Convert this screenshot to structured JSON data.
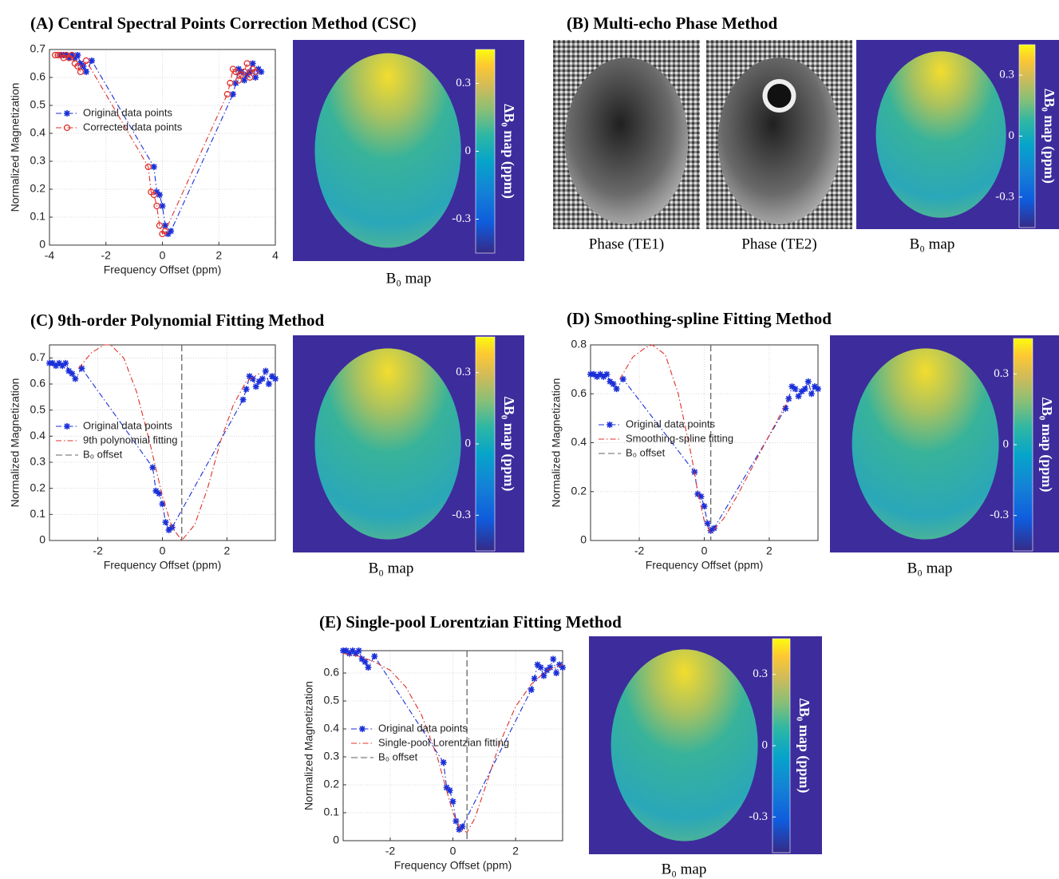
{
  "chart_data": [
    {
      "type": "line",
      "title": "(A) Central Spectral Points Correction Method (CSC)",
      "xlabel": "Frequency Offset (ppm)",
      "ylabel": "Normalized Magnetization",
      "xlim": [
        -4,
        4
      ],
      "xticks": [
        -4,
        -2,
        0,
        2,
        4
      ],
      "ylim": [
        0,
        0.7
      ],
      "yticks": [
        0,
        0.1,
        0.2,
        0.3,
        0.4,
        0.5,
        0.6,
        0.7
      ],
      "grid": true,
      "series": [
        {
          "name": "Original data points",
          "color": "#1a2fd8",
          "marker": "star",
          "x": [
            -3.6,
            -3.5,
            -3.4,
            -3.3,
            -3.2,
            -3.1,
            -3.0,
            -2.9,
            -2.8,
            -2.7,
            -2.5,
            -0.3,
            -0.2,
            -0.1,
            0,
            0.1,
            0.2,
            0.3,
            2.5,
            2.6,
            2.7,
            2.8,
            2.9,
            3.0,
            3.1,
            3.2,
            3.3,
            3.4,
            3.5
          ],
          "values": [
            0.68,
            0.68,
            0.68,
            0.67,
            0.68,
            0.67,
            0.68,
            0.65,
            0.64,
            0.62,
            0.66,
            0.28,
            0.19,
            0.18,
            0.14,
            0.07,
            0.04,
            0.05,
            0.54,
            0.58,
            0.63,
            0.62,
            0.59,
            0.61,
            0.62,
            0.65,
            0.6,
            0.63,
            0.62
          ]
        },
        {
          "name": "Corrected data points",
          "color": "#e0302a",
          "marker": "circle",
          "x": [
            -3.8,
            -3.7,
            -3.6,
            -3.5,
            -3.4,
            -3.3,
            -3.2,
            -3.1,
            -3.0,
            -2.9,
            -2.7,
            -0.5,
            -0.4,
            -0.3,
            -0.2,
            -0.1,
            0,
            0.1,
            2.3,
            2.4,
            2.5,
            2.6,
            2.7,
            2.8,
            2.9,
            3.0,
            3.1,
            3.2,
            3.3
          ],
          "values": [
            0.68,
            0.68,
            0.68,
            0.67,
            0.68,
            0.67,
            0.68,
            0.65,
            0.64,
            0.62,
            0.66,
            0.28,
            0.19,
            0.18,
            0.14,
            0.07,
            0.04,
            0.05,
            0.54,
            0.58,
            0.63,
            0.62,
            0.59,
            0.61,
            0.62,
            0.65,
            0.6,
            0.63,
            0.62
          ]
        }
      ],
      "map": {
        "label": "B₀ map",
        "colorbar_label": "ΔB₀ map (ppm)",
        "clim": [
          -0.45,
          0.45
        ],
        "cticks": [
          0.3,
          0,
          -0.3
        ]
      }
    },
    {
      "type": "images",
      "title": "(B) Multi-echo Phase Method",
      "images": [
        "Phase (TE1)",
        "Phase (TE2)"
      ],
      "map": {
        "label": "B₀ map",
        "colorbar_label": "ΔB₀ map (ppm)",
        "clim": [
          -0.45,
          0.45
        ],
        "cticks": [
          0.3,
          0,
          -0.3
        ]
      }
    },
    {
      "type": "line",
      "title": "(C) 9th-order Polynomial Fitting Method",
      "xlabel": "Frequency Offset (ppm)",
      "ylabel": "Normalized Magnetization",
      "xlim": [
        -3.5,
        3.5
      ],
      "xticks": [
        -2,
        0,
        2
      ],
      "ylim": [
        0,
        0.75
      ],
      "yticks": [
        0,
        0.1,
        0.2,
        0.3,
        0.4,
        0.5,
        0.6,
        0.7
      ],
      "grid": true,
      "series": [
        {
          "name": "Original data points",
          "color": "#1a2fd8",
          "marker": "star",
          "x": [
            -3.5,
            -3.4,
            -3.3,
            -3.2,
            -3.1,
            -3.0,
            -2.9,
            -2.8,
            -2.7,
            -2.5,
            -0.3,
            -0.2,
            -0.1,
            0,
            0.1,
            0.2,
            0.3,
            2.5,
            2.6,
            2.7,
            2.8,
            2.9,
            3.0,
            3.1,
            3.2,
            3.3,
            3.4,
            3.5
          ],
          "values": [
            0.68,
            0.68,
            0.67,
            0.68,
            0.67,
            0.68,
            0.65,
            0.64,
            0.62,
            0.66,
            0.28,
            0.19,
            0.18,
            0.14,
            0.07,
            0.04,
            0.05,
            0.54,
            0.58,
            0.63,
            0.62,
            0.59,
            0.61,
            0.62,
            0.65,
            0.6,
            0.63,
            0.62
          ]
        },
        {
          "name": "9th polynomial fitting",
          "color": "#e0302a",
          "marker": "none",
          "x": [
            -2.6,
            -2.2,
            -1.8,
            -1.6,
            -1.2,
            -0.8,
            -0.4,
            0,
            0.3,
            0.6,
            1.0,
            1.4,
            1.8,
            2.2,
            2.6,
            3.0
          ],
          "values": [
            0.66,
            0.72,
            0.75,
            0.75,
            0.7,
            0.57,
            0.38,
            0.17,
            0.05,
            0,
            0.06,
            0.2,
            0.38,
            0.52,
            0.61,
            0.64
          ]
        }
      ],
      "vline": {
        "name": "B₀ offset",
        "x": 0.6,
        "color": "#666666"
      },
      "map": {
        "label": "B₀ map",
        "colorbar_label": "ΔB₀ map (ppm)",
        "clim": [
          -0.45,
          0.45
        ],
        "cticks": [
          0.3,
          0,
          -0.3
        ]
      }
    },
    {
      "type": "line",
      "title": "(D) Smoothing-spline Fitting Method",
      "xlabel": "Frequency Offset (ppm)",
      "ylabel": "Normalized Magnetization",
      "xlim": [
        -3.5,
        3.5
      ],
      "xticks": [
        -2,
        0,
        2
      ],
      "ylim": [
        0,
        0.8
      ],
      "yticks": [
        0,
        0.2,
        0.4,
        0.6,
        0.8
      ],
      "grid": true,
      "series": [
        {
          "name": "Original data points",
          "color": "#1a2fd8",
          "marker": "star",
          "x": [
            -3.5,
            -3.4,
            -3.3,
            -3.2,
            -3.1,
            -3.0,
            -2.9,
            -2.8,
            -2.7,
            -2.5,
            -0.3,
            -0.2,
            -0.1,
            0,
            0.1,
            0.2,
            0.3,
            2.5,
            2.6,
            2.7,
            2.8,
            2.9,
            3.0,
            3.1,
            3.2,
            3.3,
            3.4,
            3.5
          ],
          "values": [
            0.68,
            0.68,
            0.67,
            0.68,
            0.67,
            0.68,
            0.65,
            0.64,
            0.62,
            0.66,
            0.28,
            0.19,
            0.18,
            0.14,
            0.07,
            0.04,
            0.05,
            0.54,
            0.58,
            0.63,
            0.62,
            0.59,
            0.61,
            0.62,
            0.65,
            0.6,
            0.63,
            0.62
          ]
        },
        {
          "name": "Smoothing-spline fitting",
          "color": "#e0302a",
          "marker": "none",
          "x": [
            -2.6,
            -2.2,
            -1.8,
            -1.6,
            -1.2,
            -0.8,
            -0.4,
            -0.2,
            0,
            0.2,
            0.6,
            1.0,
            1.4,
            1.8,
            2.2,
            2.6
          ],
          "values": [
            0.66,
            0.75,
            0.79,
            0.8,
            0.76,
            0.6,
            0.35,
            0.2,
            0.08,
            0.03,
            0.09,
            0.18,
            0.28,
            0.38,
            0.48,
            0.58
          ]
        }
      ],
      "vline": {
        "name": "B₀ offset",
        "x": 0.2,
        "color": "#666666"
      },
      "map": {
        "label": "B₀ map",
        "colorbar_label": "ΔB₀ map (ppm)",
        "clim": [
          -0.45,
          0.45
        ],
        "cticks": [
          0.3,
          0,
          -0.3
        ]
      }
    },
    {
      "type": "line",
      "title": "(E) Single-pool Lorentzian Fitting Method",
      "xlabel": "Frequency Offset (ppm)",
      "ylabel": "Normalized Magnetization",
      "xlim": [
        -3.5,
        3.5
      ],
      "xticks": [
        -2,
        0,
        2
      ],
      "ylim": [
        0,
        0.68
      ],
      "yticks": [
        0,
        0.1,
        0.2,
        0.3,
        0.4,
        0.5,
        0.6
      ],
      "grid": true,
      "series": [
        {
          "name": "Original data points",
          "color": "#1a2fd8",
          "marker": "star",
          "x": [
            -3.5,
            -3.4,
            -3.3,
            -3.2,
            -3.1,
            -3.0,
            -2.9,
            -2.8,
            -2.7,
            -2.5,
            -0.3,
            -0.2,
            -0.1,
            0,
            0.1,
            0.2,
            0.3,
            2.5,
            2.6,
            2.7,
            2.8,
            2.9,
            3.0,
            3.1,
            3.2,
            3.3,
            3.4,
            3.5
          ],
          "values": [
            0.68,
            0.68,
            0.67,
            0.68,
            0.67,
            0.68,
            0.65,
            0.64,
            0.62,
            0.66,
            0.28,
            0.19,
            0.18,
            0.14,
            0.07,
            0.04,
            0.05,
            0.54,
            0.58,
            0.63,
            0.62,
            0.59,
            0.61,
            0.62,
            0.65,
            0.6,
            0.63,
            0.62
          ]
        },
        {
          "name": "Single-pool Lorentzian fitting",
          "color": "#e0302a",
          "marker": "none",
          "x": [
            -3.5,
            -3,
            -2.5,
            -2,
            -1.5,
            -1,
            -0.5,
            0,
            0.25,
            0.45,
            0.7,
            1,
            1.5,
            2,
            2.5,
            3,
            3.5
          ],
          "values": [
            0.67,
            0.66,
            0.64,
            0.61,
            0.55,
            0.45,
            0.3,
            0.1,
            0.04,
            0.03,
            0.08,
            0.18,
            0.35,
            0.48,
            0.56,
            0.61,
            0.63
          ]
        }
      ],
      "vline": {
        "name": "B₀ offset",
        "x": 0.45,
        "color": "#666666"
      },
      "map": {
        "label": "B₀ map",
        "colorbar_label": "ΔB₀ map (ppm)",
        "clim": [
          -0.45,
          0.45
        ],
        "cticks": [
          0.3,
          0,
          -0.3
        ]
      }
    }
  ]
}
